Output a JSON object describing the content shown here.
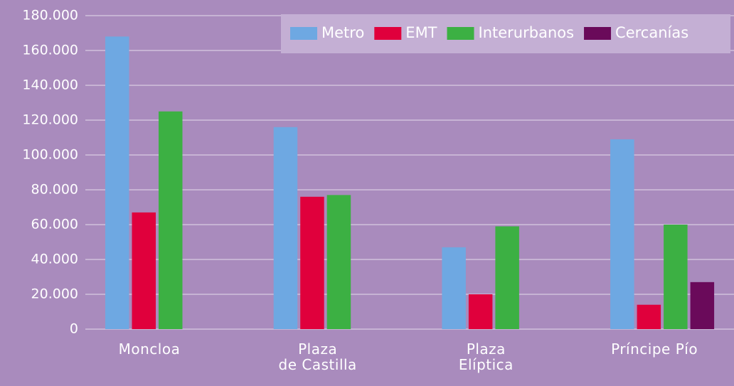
{
  "chart_data": {
    "type": "bar",
    "categories": [
      "Moncloa",
      "Plaza\nde Castilla",
      "Plaza\nElíptica",
      "Príncipe Pío"
    ],
    "series": [
      {
        "name": "Metro",
        "color": "#6ea8e2",
        "values": [
          168000,
          116000,
          47000,
          109000
        ]
      },
      {
        "name": "EMT",
        "color": "#e0003c",
        "values": [
          67000,
          76000,
          20000,
          14000
        ]
      },
      {
        "name": "Interurbanos",
        "color": "#3cb043",
        "values": [
          125000,
          77000,
          59000,
          60000
        ]
      },
      {
        "name": "Cercanías",
        "color": "#6a0a5a",
        "values": [
          null,
          null,
          null,
          27000
        ]
      }
    ],
    "ylim": [
      0,
      180000
    ],
    "yticks": [
      0,
      {
        "value": 20000,
        "label": "20.000"
      },
      {
        "value": 40000,
        "label": "40.000"
      },
      {
        "value": 60000,
        "label": "60.000"
      },
      {
        "value": 80000,
        "label": "80.000"
      },
      {
        "value": 100000,
        "label": "100.000"
      },
      {
        "value": 120000,
        "label": "120.000"
      },
      {
        "value": 140000,
        "label": "140.000"
      },
      {
        "value": 160000,
        "label": "160.000"
      },
      {
        "value": 180000,
        "label": "180.000"
      }
    ],
    "grid": true,
    "legend": "top-right"
  }
}
